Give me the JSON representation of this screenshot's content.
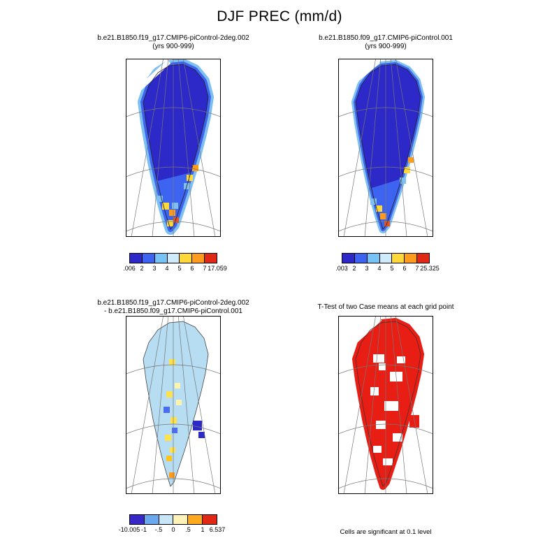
{
  "figure": {
    "title": "DJF PREC (mm/d)"
  },
  "panels": [
    {
      "id": "top-left",
      "title_line1": "b.e21.B1850.f19_g17.CMIP6-piControl-2deg.002",
      "title_line2": "(yrs 900-999)",
      "colorbar": {
        "labels": [
          ".006",
          "2",
          "3",
          "4",
          "5",
          "6",
          "7",
          "17.059"
        ],
        "colors": [
          "#2d28c8",
          "#3c64f0",
          "#78c3f5",
          "#cfeafa",
          "#ffd83c",
          "#ff9c1e",
          "#e02814"
        ]
      }
    },
    {
      "id": "top-right",
      "title_line1": "b.e21.B1850.f09_g17.CMIP6-piControl.001",
      "title_line2": "(yrs 900-999)",
      "colorbar": {
        "labels": [
          ".003",
          "2",
          "3",
          "4",
          "5",
          "6",
          "7",
          "25.325"
        ],
        "colors": [
          "#2d28c8",
          "#3c64f0",
          "#78c3f5",
          "#cfeafa",
          "#ffd83c",
          "#ff9c1e",
          "#e02814"
        ]
      }
    },
    {
      "id": "bottom-left",
      "title_line1": "b.e21.B1850.f19_g17.CMIP6-piControl-2deg.002",
      "title_line2": "- b.e21.B1850.f09_g17.CMIP6-piControl.001",
      "colorbar": {
        "labels": [
          "-10.005",
          "-1",
          "-.5",
          "0",
          ".5",
          "1",
          "6.537"
        ],
        "colors": [
          "#3928c8",
          "#6aa8f0",
          "#c9e6f8",
          "#fdf2b8",
          "#ffaa1e",
          "#e02814"
        ]
      }
    },
    {
      "id": "bottom-right",
      "title_line1": "T-Test of two Case means at each grid point",
      "footnote": "Cells are significant at 0.1 level"
    }
  ],
  "chart_data": [
    {
      "type": "heatmap",
      "subtype": "polar-stereographic-map",
      "region": "Greenland",
      "title": "b.e21.B1850.f19_g17.CMIP6-piControl-2deg.002 (yrs 900-999)",
      "variable": "DJF PREC",
      "units": "mm/d",
      "min": 0.006,
      "max": 17.059,
      "levels": [
        0.006,
        2,
        3,
        4,
        5,
        6,
        7,
        17.059
      ],
      "palette": [
        "#2d28c8",
        "#3c64f0",
        "#78c3f5",
        "#cfeafa",
        "#ffd83c",
        "#ff9c1e",
        "#e02814"
      ],
      "description": "Interior Greenland below 2 mm/d (dark blue); 2-5 mm/d bands along coasts; isolated 5-17 mm/d cells (yellow/orange/red) along south and southeast coasts; diagonal missing-data gap near top-left."
    },
    {
      "type": "heatmap",
      "subtype": "polar-stereographic-map",
      "region": "Greenland",
      "title": "b.e21.B1850.f09_g17.CMIP6-piControl.001 (yrs 900-999)",
      "variable": "DJF PREC",
      "units": "mm/d",
      "min": 0.003,
      "max": 25.325,
      "levels": [
        0.003,
        2,
        3,
        4,
        5,
        6,
        7,
        25.325
      ],
      "palette": [
        "#2d28c8",
        "#3c64f0",
        "#78c3f5",
        "#cfeafa",
        "#ffd83c",
        "#ff9c1e",
        "#e02814"
      ],
      "description": "Same pattern at higher resolution: dark blue interior, narrow coastal gradient, strong (orange/red) precipitation cells at the southern tip and southeast coast."
    },
    {
      "type": "heatmap",
      "subtype": "difference-map",
      "region": "Greenland",
      "title": "b.e21.B1850.f19_g17.CMIP6-piControl-2deg.002 - b.e21.B1850.f09_g17.CMIP6-piControl.001",
      "variable": "DJF PREC difference",
      "units": "mm/d",
      "min": -10.005,
      "max": 6.537,
      "levels": [
        -10.005,
        -1,
        -0.5,
        0,
        0.5,
        1,
        6.537
      ],
      "palette": [
        "#3928c8",
        "#6aa8f0",
        "#c9e6f8",
        "#fdf2b8",
        "#ffaa1e",
        "#e02814"
      ],
      "description": "Mostly weak negative differences (-0.5 to 0, light blue); scattered positive cells (yellow/gold) through the central-south interior; strong negative cells (dark blue) on the east coast; orange cell near the southern tip."
    },
    {
      "type": "map",
      "subtype": "significance-mask",
      "region": "Greenland",
      "title": "T-Test of two Case means at each grid point",
      "significance_level": 0.1,
      "significant_color": "#e81e14",
      "description": "Red cells are significant at the 0.1 level; white holes mark non-significant grid points, concentrated in the central and western interior."
    }
  ]
}
